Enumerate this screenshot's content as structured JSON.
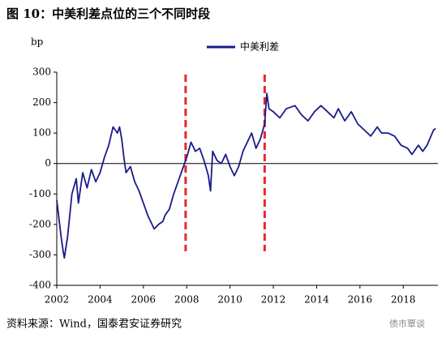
{
  "chart_data": {
    "type": "line",
    "title": "图 10：中美利差点位的三个不同时段",
    "y_label": "bp",
    "source": "资料来源：Wind，国泰君安证券研究",
    "watermark": "债市覃谈",
    "x": [
      2002.0,
      2002.1,
      2002.2,
      2002.3,
      2002.35,
      2002.5,
      2002.7,
      2002.9,
      2003.0,
      2003.2,
      2003.4,
      2003.6,
      2003.8,
      2004.0,
      2004.2,
      2004.4,
      2004.6,
      2004.8,
      2004.9,
      2005.0,
      2005.1,
      2005.2,
      2005.4,
      2005.6,
      2005.8,
      2006.0,
      2006.2,
      2006.4,
      2006.5,
      2006.7,
      2006.9,
      2007.0,
      2007.2,
      2007.4,
      2007.6,
      2007.8,
      2008.0,
      2008.2,
      2008.4,
      2008.6,
      2008.8,
      2009.0,
      2009.1,
      2009.2,
      2009.4,
      2009.6,
      2009.8,
      2010.0,
      2010.2,
      2010.4,
      2010.6,
      2010.8,
      2011.0,
      2011.2,
      2011.4,
      2011.6,
      2011.7,
      2011.8,
      2012.0,
      2012.3,
      2012.6,
      2013.0,
      2013.3,
      2013.6,
      2013.9,
      2014.2,
      2014.5,
      2014.8,
      2015.0,
      2015.3,
      2015.6,
      2015.9,
      2016.2,
      2016.5,
      2016.8,
      2017.0,
      2017.3,
      2017.6,
      2017.9,
      2018.2,
      2018.4,
      2018.7,
      2018.9,
      2019.1,
      2019.4,
      2019.5
    ],
    "series": [
      {
        "name": "中美利差",
        "color": "#1a1a8c",
        "values": [
          -120,
          -180,
          -240,
          -290,
          -310,
          -240,
          -100,
          -50,
          -130,
          -30,
          -80,
          -20,
          -60,
          -30,
          20,
          60,
          120,
          100,
          120,
          80,
          20,
          -30,
          -10,
          -60,
          -90,
          -130,
          -170,
          -200,
          -215,
          -200,
          -190,
          -170,
          -150,
          -100,
          -60,
          -20,
          20,
          70,
          40,
          50,
          10,
          -40,
          -90,
          40,
          10,
          0,
          30,
          -10,
          -40,
          -10,
          40,
          70,
          100,
          50,
          80,
          130,
          230,
          180,
          170,
          150,
          180,
          190,
          160,
          140,
          170,
          190,
          170,
          150,
          180,
          140,
          170,
          130,
          110,
          90,
          120,
          100,
          100,
          90,
          60,
          50,
          30,
          60,
          40,
          60,
          110,
          115
        ]
      }
    ],
    "markers": {
      "x": [
        2007.95,
        2011.6
      ],
      "color": "#e8282b"
    },
    "xlim": [
      2002,
      2019.6
    ],
    "xticks": [
      2002,
      2004,
      2006,
      2008,
      2010,
      2012,
      2014,
      2016,
      2018
    ],
    "ylim": [
      -400,
      300
    ],
    "yticks": [
      -400,
      -300,
      -200,
      -100,
      0,
      100,
      200,
      300
    ]
  }
}
